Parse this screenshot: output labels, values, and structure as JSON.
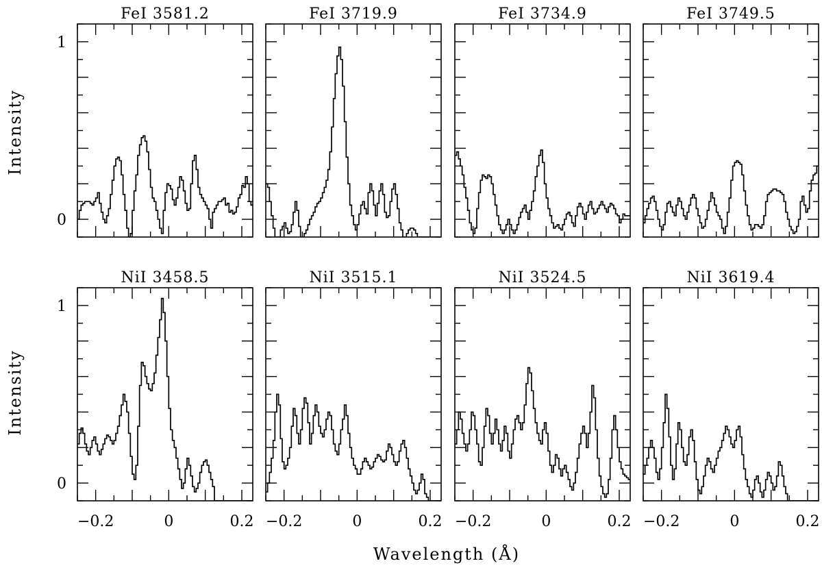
{
  "figure": {
    "xlabel": "Wavelength (Å)",
    "ylabel": "Intensity"
  },
  "chart_data": [
    {
      "type": "line",
      "title": "FeI  3581.2",
      "xlim": [
        -0.25,
        0.23
      ],
      "ylim": [
        -0.1,
        1.1
      ],
      "xticks": [
        -0.2,
        0,
        0.2
      ],
      "yticks": [
        0,
        1
      ],
      "x0": -0.25,
      "dx": 0.005,
      "step": true,
      "y": [
        0.0,
        0.05,
        0.08,
        0.09,
        0.1,
        0.1,
        0.1,
        0.09,
        0.08,
        0.1,
        0.12,
        0.15,
        0.09,
        0.04,
        0.0,
        -0.02,
        0.02,
        0.06,
        0.14,
        0.22,
        0.3,
        0.34,
        0.35,
        0.33,
        0.25,
        0.14,
        0.05,
        -0.05,
        -0.1,
        -0.08,
        0.05,
        0.16,
        0.25,
        0.36,
        0.42,
        0.46,
        0.47,
        0.44,
        0.38,
        0.28,
        0.18,
        0.12,
        0.1,
        0.05,
        0.0,
        -0.05,
        -0.08,
        0.05,
        0.15,
        0.2,
        0.19,
        0.17,
        0.11,
        0.08,
        0.12,
        0.18,
        0.24,
        0.22,
        0.16,
        0.09,
        0.05,
        0.06,
        0.2,
        0.33,
        0.36,
        0.28,
        0.18,
        0.14,
        0.12,
        0.1,
        0.08,
        0.06,
        0.0,
        -0.05,
        0.04,
        0.06,
        0.08,
        0.1,
        0.1,
        0.11,
        0.12,
        0.08,
        0.09,
        0.04,
        0.05,
        0.03,
        0.04,
        0.07,
        0.12,
        0.14,
        0.19,
        0.18,
        0.24,
        0.2,
        0.1,
        0.08
      ]
    },
    {
      "type": "line",
      "title": "FeI  3719.9",
      "xlim": [
        -0.25,
        0.23
      ],
      "ylim": [
        -0.1,
        1.1
      ],
      "xticks": [
        -0.2,
        0,
        0.2
      ],
      "yticks": [
        0,
        1
      ],
      "x0": -0.25,
      "dx": 0.005,
      "step": true,
      "y": [
        0.2,
        0.18,
        0.1,
        0.02,
        -0.05,
        -0.1,
        -0.12,
        -0.1,
        -0.06,
        -0.04,
        -0.02,
        -0.05,
        -0.08,
        -0.07,
        -0.03,
        0.04,
        0.1,
        0.05,
        -0.04,
        -0.1,
        -0.1,
        -0.08,
        -0.06,
        -0.03,
        0.0,
        0.02,
        0.04,
        0.07,
        0.09,
        0.1,
        0.12,
        0.15,
        0.18,
        0.22,
        0.28,
        0.38,
        0.52,
        0.68,
        0.82,
        0.92,
        0.97,
        0.9,
        0.75,
        0.55,
        0.35,
        0.2,
        0.08,
        0.02,
        -0.03,
        -0.06,
        -0.03,
        0.03,
        0.08,
        0.1,
        0.06,
        0.03,
        0.15,
        0.2,
        0.16,
        0.08,
        0.02,
        0.09,
        0.16,
        0.2,
        0.14,
        0.04,
        0.01,
        0.02,
        0.1,
        0.17,
        0.2,
        0.14,
        0.06,
        -0.02,
        -0.06,
        -0.1,
        -0.11,
        -0.08,
        -0.06,
        -0.05,
        -0.05,
        -0.06,
        -0.08,
        -0.1,
        -0.1,
        -0.1,
        -0.1,
        -0.1,
        -0.1,
        -0.1,
        -0.1,
        -0.1,
        -0.1,
        -0.1,
        -0.1,
        -0.1
      ]
    },
    {
      "type": "line",
      "title": "FeI  3734.9",
      "xlim": [
        -0.25,
        0.23
      ],
      "ylim": [
        -0.1,
        1.1
      ],
      "xticks": [
        -0.2,
        0,
        0.2
      ],
      "yticks": [
        0,
        1
      ],
      "x0": -0.25,
      "dx": 0.005,
      "step": true,
      "y": [
        0.36,
        0.38,
        0.34,
        0.3,
        0.25,
        0.18,
        0.12,
        0.05,
        -0.02,
        -0.06,
        -0.08,
        -0.05,
        0.06,
        0.15,
        0.22,
        0.25,
        0.24,
        0.23,
        0.25,
        0.24,
        0.2,
        0.14,
        0.08,
        0.02,
        -0.03,
        -0.06,
        -0.08,
        -0.06,
        -0.03,
        0.0,
        -0.03,
        -0.06,
        -0.08,
        -0.06,
        -0.03,
        0.01,
        0.04,
        0.06,
        0.08,
        0.04,
        0.0,
        0.05,
        0.1,
        0.16,
        0.24,
        0.3,
        0.36,
        0.39,
        0.32,
        0.2,
        0.12,
        0.06,
        0.02,
        -0.02,
        -0.05,
        -0.04,
        -0.03,
        -0.05,
        -0.06,
        -0.03,
        0.0,
        0.03,
        0.04,
        0.02,
        -0.02,
        -0.04,
        0.02,
        0.07,
        0.09,
        0.07,
        0.03,
        0.0,
        0.04,
        0.08,
        0.1,
        0.06,
        0.03,
        0.04,
        0.06,
        0.08,
        0.1,
        0.08,
        0.06,
        0.04,
        0.07,
        0.09,
        0.08,
        0.06,
        0.03,
        0.02,
        -0.02,
        0.0,
        0.03,
        0.02,
        0.02,
        0.02
      ]
    },
    {
      "type": "line",
      "title": "FeI  3749.5",
      "xlim": [
        -0.25,
        0.23
      ],
      "ylim": [
        -0.1,
        1.1
      ],
      "xticks": [
        -0.2,
        0,
        0.2
      ],
      "yticks": [
        0,
        1
      ],
      "x0": -0.25,
      "dx": 0.005,
      "step": true,
      "y": [
        -0.02,
        0.02,
        0.06,
        0.09,
        0.12,
        0.13,
        0.1,
        0.05,
        0.0,
        -0.04,
        -0.06,
        -0.03,
        0.04,
        0.09,
        0.1,
        0.07,
        0.04,
        0.02,
        0.08,
        0.12,
        0.1,
        0.06,
        0.02,
        0.0,
        0.04,
        0.08,
        0.12,
        0.14,
        0.12,
        0.06,
        0.02,
        -0.02,
        -0.05,
        -0.04,
        0.0,
        0.05,
        0.1,
        0.15,
        0.12,
        0.08,
        0.04,
        0.02,
        0.0,
        -0.05,
        -0.08,
        -0.04,
        0.04,
        0.12,
        0.22,
        0.3,
        0.32,
        0.33,
        0.32,
        0.31,
        0.25,
        0.16,
        0.08,
        0.02,
        -0.03,
        -0.06,
        -0.05,
        -0.03,
        -0.03,
        -0.04,
        -0.05,
        -0.03,
        0.02,
        0.1,
        0.14,
        0.15,
        0.16,
        0.17,
        0.17,
        0.16,
        0.16,
        0.15,
        0.14,
        0.1,
        0.04,
        0.0,
        -0.04,
        -0.06,
        -0.08,
        -0.07,
        -0.04,
        0.0,
        0.1,
        0.13,
        0.08,
        0.04,
        0.06,
        0.16,
        0.22,
        0.25,
        0.26,
        0.3
      ]
    },
    {
      "type": "line",
      "title": "NiI  3458.5",
      "xlim": [
        -0.25,
        0.23
      ],
      "ylim": [
        -0.1,
        1.1
      ],
      "xticks": [
        -0.2,
        0,
        0.2
      ],
      "yticks": [
        0,
        1
      ],
      "x0": -0.25,
      "dx": 0.005,
      "step": true,
      "y": [
        0.22,
        0.28,
        0.31,
        0.28,
        0.22,
        0.18,
        0.16,
        0.2,
        0.24,
        0.26,
        0.22,
        0.18,
        0.16,
        0.19,
        0.22,
        0.25,
        0.27,
        0.26,
        0.24,
        0.22,
        0.24,
        0.28,
        0.32,
        0.38,
        0.44,
        0.5,
        0.46,
        0.4,
        0.28,
        0.15,
        0.05,
        0.02,
        0.1,
        0.32,
        0.55,
        0.68,
        0.66,
        0.6,
        0.56,
        0.53,
        0.52,
        0.56,
        0.62,
        0.72,
        0.82,
        0.92,
        1.04,
        0.96,
        0.8,
        0.6,
        0.42,
        0.3,
        0.24,
        0.2,
        0.14,
        0.08,
        0.02,
        -0.03,
        0.0,
        0.08,
        0.14,
        0.1,
        0.04,
        -0.02,
        -0.05,
        -0.03,
        0.0,
        0.06,
        0.1,
        0.12,
        0.13,
        0.1,
        0.06,
        0.02,
        -0.02,
        -0.1,
        -0.1,
        -0.1,
        -0.1,
        -0.1,
        -0.1,
        -0.1,
        -0.1,
        -0.1,
        -0.1,
        -0.1,
        -0.1,
        -0.1,
        -0.1,
        -0.1,
        -0.1,
        -0.1,
        -0.1,
        -0.1,
        -0.1,
        -0.1
      ]
    },
    {
      "type": "line",
      "title": "NiI  3515.1",
      "xlim": [
        -0.25,
        0.23
      ],
      "ylim": [
        -0.1,
        1.1
      ],
      "xticks": [
        -0.2,
        0,
        0.2
      ],
      "yticks": [
        0,
        1
      ],
      "x0": -0.25,
      "dx": 0.005,
      "step": true,
      "y": [
        -0.05,
        0.0,
        0.06,
        0.14,
        0.24,
        0.4,
        0.5,
        0.44,
        0.25,
        0.12,
        0.08,
        0.1,
        0.14,
        0.2,
        0.32,
        0.42,
        0.38,
        0.28,
        0.22,
        0.3,
        0.42,
        0.48,
        0.45,
        0.34,
        0.22,
        0.28,
        0.38,
        0.44,
        0.4,
        0.32,
        0.28,
        0.26,
        0.3,
        0.36,
        0.4,
        0.38,
        0.3,
        0.22,
        0.18,
        0.16,
        0.22,
        0.3,
        0.36,
        0.44,
        0.38,
        0.28,
        0.2,
        0.14,
        0.1,
        0.08,
        0.05,
        0.05,
        0.08,
        0.12,
        0.14,
        0.12,
        0.1,
        0.08,
        0.09,
        0.12,
        0.14,
        0.16,
        0.15,
        0.13,
        0.12,
        0.13,
        0.18,
        0.22,
        0.2,
        0.16,
        0.12,
        0.1,
        0.12,
        0.18,
        0.22,
        0.24,
        0.2,
        0.14,
        0.08,
        0.04,
        0.0,
        -0.04,
        -0.06,
        -0.04,
        0.0,
        0.05,
        0.02,
        -0.06,
        -0.08,
        -0.1,
        -0.1,
        -0.1,
        -0.1,
        -0.1,
        -0.1,
        -0.1
      ]
    },
    {
      "type": "line",
      "title": "NiI  3524.5",
      "xlim": [
        -0.25,
        0.23
      ],
      "ylim": [
        -0.1,
        1.1
      ],
      "xticks": [
        -0.2,
        0,
        0.2
      ],
      "yticks": [
        0,
        1
      ],
      "x0": -0.25,
      "dx": 0.005,
      "step": true,
      "y": [
        0.22,
        0.3,
        0.4,
        0.36,
        0.28,
        0.22,
        0.18,
        0.22,
        0.3,
        0.4,
        0.38,
        0.3,
        0.22,
        0.12,
        0.1,
        0.2,
        0.32,
        0.42,
        0.38,
        0.28,
        0.22,
        0.28,
        0.36,
        0.3,
        0.22,
        0.18,
        0.24,
        0.32,
        0.28,
        0.18,
        0.14,
        0.22,
        0.3,
        0.36,
        0.38,
        0.34,
        0.3,
        0.34,
        0.44,
        0.56,
        0.65,
        0.62,
        0.52,
        0.42,
        0.34,
        0.28,
        0.24,
        0.22,
        0.3,
        0.34,
        0.28,
        0.18,
        0.1,
        0.06,
        0.1,
        0.16,
        0.14,
        0.08,
        0.04,
        0.08,
        0.1,
        0.06,
        0.02,
        -0.02,
        -0.04,
        0.0,
        0.06,
        0.14,
        0.22,
        0.28,
        0.32,
        0.28,
        0.2,
        0.28,
        0.4,
        0.55,
        0.48,
        0.3,
        0.14,
        0.04,
        -0.02,
        -0.06,
        -0.08,
        -0.06,
        0.02,
        0.14,
        0.3,
        0.38,
        0.3,
        0.2,
        0.12,
        0.08,
        0.05,
        0.04,
        0.03,
        0.02
      ]
    },
    {
      "type": "line",
      "title": "NiI  3619.4",
      "xlim": [
        -0.25,
        0.23
      ],
      "ylim": [
        -0.1,
        1.1
      ],
      "xticks": [
        -0.2,
        0,
        0.2
      ],
      "yticks": [
        0,
        1
      ],
      "x0": -0.25,
      "dx": 0.005,
      "step": true,
      "y": [
        0.05,
        0.1,
        0.14,
        0.2,
        0.24,
        0.2,
        0.14,
        0.06,
        0.02,
        0.08,
        0.2,
        0.34,
        0.5,
        0.42,
        0.26,
        0.1,
        0.02,
        0.08,
        0.22,
        0.34,
        0.3,
        0.2,
        0.12,
        0.1,
        0.16,
        0.26,
        0.3,
        0.24,
        0.12,
        0.02,
        -0.04,
        -0.06,
        -0.02,
        0.04,
        0.1,
        0.14,
        0.12,
        0.08,
        0.06,
        0.1,
        0.14,
        0.18,
        0.2,
        0.24,
        0.28,
        0.32,
        0.3,
        0.26,
        0.22,
        0.2,
        0.24,
        0.3,
        0.32,
        0.26,
        0.16,
        0.08,
        0.02,
        -0.02,
        -0.06,
        -0.08,
        -0.04,
        0.02,
        0.04,
        0.0,
        -0.05,
        -0.08,
        -0.04,
        0.02,
        0.06,
        0.04,
        0.0,
        -0.04,
        -0.02,
        0.04,
        0.12,
        0.1,
        0.04,
        -0.02,
        -0.06,
        -0.1,
        -0.1,
        -0.1,
        -0.1,
        -0.1,
        -0.1,
        -0.1,
        -0.1,
        -0.1,
        -0.1,
        -0.1,
        -0.1,
        -0.1,
        -0.1,
        -0.1,
        -0.1,
        -0.1
      ]
    }
  ]
}
